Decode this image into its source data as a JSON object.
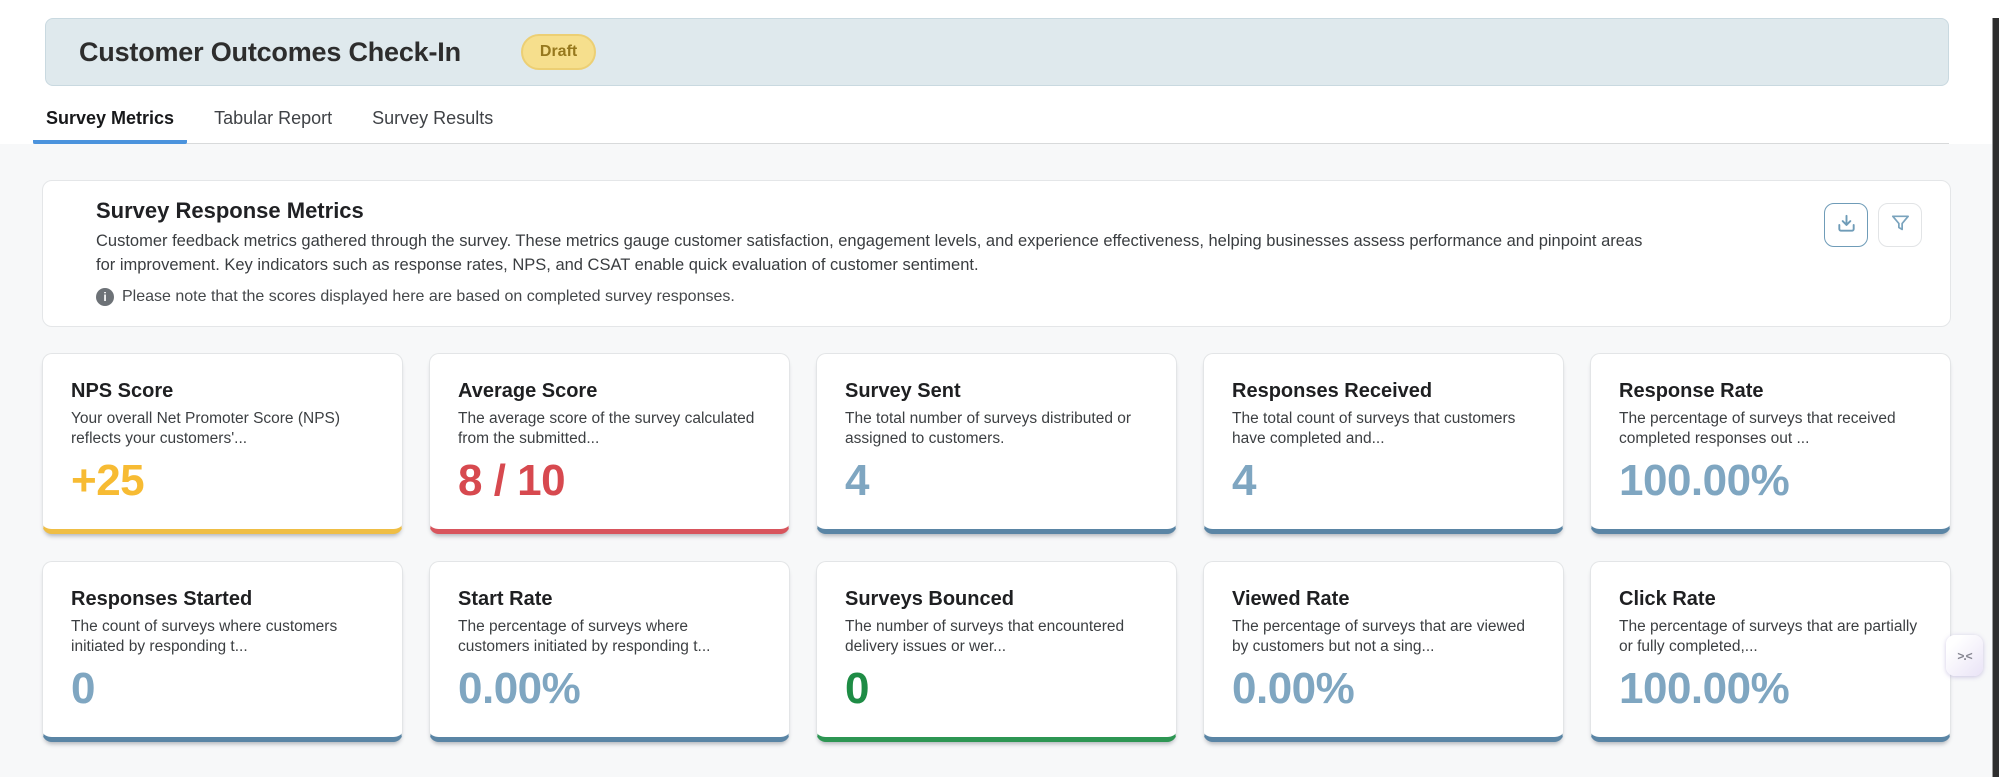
{
  "header": {
    "title": "Customer Outcomes Check-In",
    "status_badge": "Draft"
  },
  "tabs": [
    {
      "label": "Survey Metrics",
      "active": true
    },
    {
      "label": "Tabular Report",
      "active": false
    },
    {
      "label": "Survey Results",
      "active": false
    }
  ],
  "section": {
    "title": "Survey Response Metrics",
    "description": "Customer feedback metrics gathered through the survey. These metrics gauge customer satisfaction, engagement levels, and experience effectiveness, helping businesses assess performance and pinpoint areas for improvement. Key indicators such as response rates, NPS, and CSAT enable quick evaluation of customer sentiment.",
    "note": "Please note that the scores displayed here are based on completed survey responses.",
    "actions": [
      {
        "icon": "download-icon"
      },
      {
        "icon": "filter-icon"
      }
    ]
  },
  "cards": [
    {
      "title": "NPS Score",
      "description": "Your overall Net Promoter Score (NPS) reflects your customers'...",
      "value": "+25",
      "value_color": "#f7bb33",
      "border_color": "#efbe45"
    },
    {
      "title": "Average Score",
      "description": "The average score of the survey calculated from the submitted...",
      "value": "8 / 10",
      "value_color": "#d7494f",
      "border_color": "#d8555d"
    },
    {
      "title": "Survey Sent",
      "description": "The total number of surveys distributed or assigned to customers.",
      "value": "4",
      "value_color": "#7fa6c1",
      "border_color": "#5a85a5"
    },
    {
      "title": "Responses Received",
      "description": "The total count of surveys that customers have completed and...",
      "value": "4",
      "value_color": "#7fa6c1",
      "border_color": "#5a85a5"
    },
    {
      "title": "Response Rate",
      "description": "The percentage of surveys that received completed responses out ...",
      "value": "100.00%",
      "value_color": "#7fa6c1",
      "border_color": "#5a85a5"
    },
    {
      "title": "Responses Started",
      "description": "The count of surveys where customers initiated by responding t...",
      "value": "0",
      "value_color": "#7fa6c1",
      "border_color": "#5a85a5"
    },
    {
      "title": "Start Rate",
      "description": "The percentage of surveys where customers initiated by responding t...",
      "value": "0.00%",
      "value_color": "#7fa6c1",
      "border_color": "#5a85a5"
    },
    {
      "title": "Surveys Bounced",
      "description": "The number of surveys that encountered delivery issues or wer...",
      "value": "0",
      "value_color": "#1e8c45",
      "border_color": "#2d9653"
    },
    {
      "title": "Viewed Rate",
      "description": "The percentage of surveys that are viewed by customers but not a sing...",
      "value": "0.00%",
      "value_color": "#7fa6c1",
      "border_color": "#5a85a5"
    },
    {
      "title": "Click Rate",
      "description": "The percentage of surveys that are partially or fully completed,...",
      "value": "100.00%",
      "value_color": "#7fa6c1",
      "border_color": "#5a85a5"
    }
  ],
  "floating_widget": {
    "label": ">.<"
  },
  "colors": {
    "banner_background": "#dfe9ed",
    "badge_background": "#f6df8d",
    "badge_text": "#96781d",
    "active_tab_underline": "#4b93dd",
    "steel_value": "#7fa6c1",
    "content_background": "#f7f8f9"
  }
}
